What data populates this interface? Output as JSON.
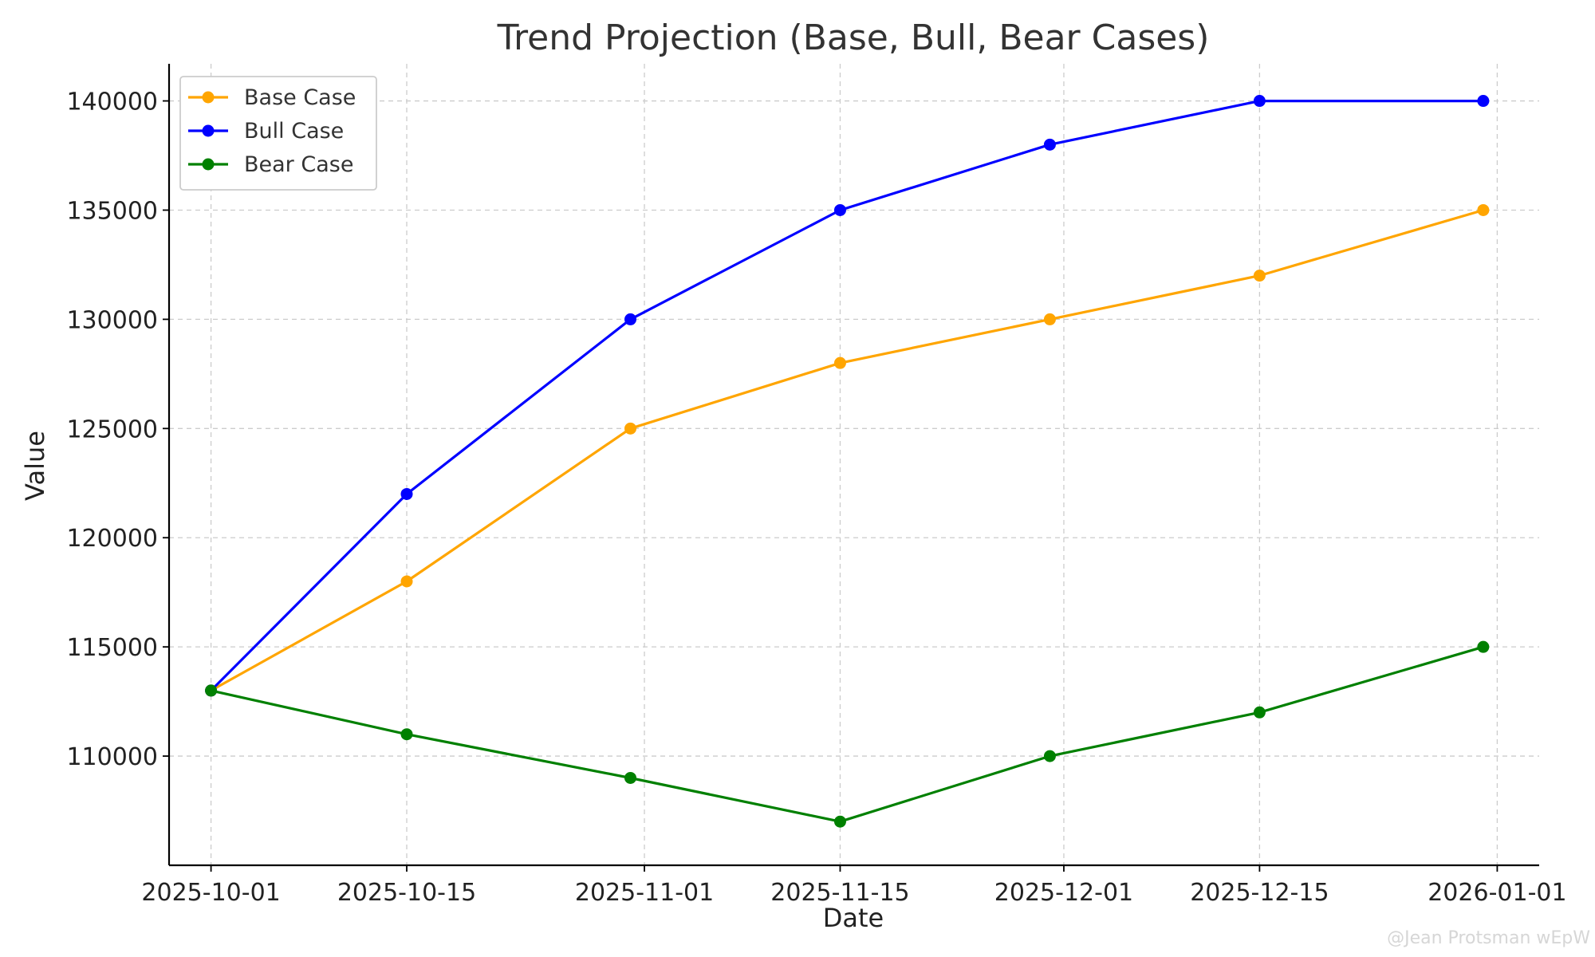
{
  "chart_data": {
    "type": "line",
    "title": "Trend Projection (Base, Bull, Bear Cases)",
    "xlabel": "Date",
    "ylabel": "Value",
    "x": [
      "2025-10-01",
      "2025-10-15",
      "2025-10-31",
      "2025-11-15",
      "2025-11-30",
      "2025-12-15",
      "2025-12-31"
    ],
    "xticks": [
      "2025-10-01",
      "2025-10-15",
      "2025-11-01",
      "2025-11-15",
      "2025-12-01",
      "2025-12-15",
      "2026-01-01"
    ],
    "yticks": [
      110000,
      115000,
      120000,
      125000,
      130000,
      135000,
      140000
    ],
    "ylim": [
      105000,
      141700
    ],
    "grid": true,
    "legend_position": "top-left",
    "series": [
      {
        "name": "Base Case",
        "color": "#ffa500",
        "values": [
          113000,
          118000,
          125000,
          128000,
          130000,
          132000,
          135000
        ]
      },
      {
        "name": "Bull Case",
        "color": "#0000ff",
        "values": [
          113000,
          122000,
          130000,
          135000,
          138000,
          140000,
          140000
        ]
      },
      {
        "name": "Bear Case",
        "color": "#008000",
        "values": [
          113000,
          111000,
          109000,
          107000,
          110000,
          112000,
          115000
        ]
      }
    ]
  },
  "watermark": "@Jean Protsman wEpW"
}
